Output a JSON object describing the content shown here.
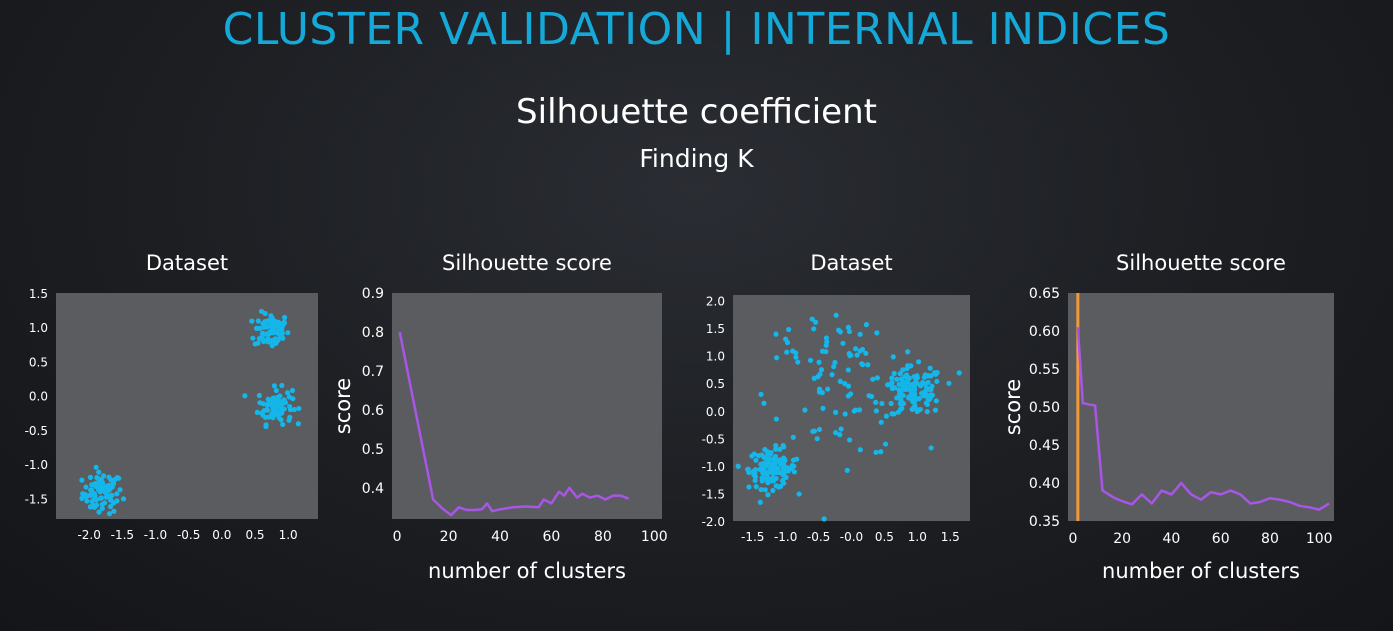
{
  "slide": {
    "title": "CLUSTER VALIDATION | INTERNAL INDICES",
    "subtitle": "Silhouette coefficient",
    "subsubtitle": "Finding K"
  },
  "colors": {
    "title": "#14a9d8",
    "plot_background": "#5b5c5f",
    "points": "#15b6ea",
    "line": "#a855e8",
    "marker": "#f29a3a"
  },
  "chart_data": [
    {
      "type": "scatter",
      "title": "Dataset",
      "xlabel": "",
      "ylabel": "",
      "xlim": [
        -2.5,
        1.45
      ],
      "ylim": [
        -1.8,
        1.5
      ],
      "xticks": [
        -2.0,
        -1.5,
        -1.0,
        -0.5,
        0.0,
        0.5,
        1.0
      ],
      "xtick_labels": [
        "-2.0",
        "-1.5",
        "-1.0",
        "-0.5",
        "0.0",
        "0.5",
        "1.0"
      ],
      "yticks": [
        1.5,
        1.0,
        0.5,
        0.0,
        -0.5,
        -1.0,
        -1.5
      ],
      "ytick_labels": [
        "1.5",
        "1.0",
        "0.5",
        "0.0",
        "-0.5",
        "-1.0",
        "-1.5"
      ],
      "grid": false,
      "clusters": [
        {
          "center": [
            -1.8,
            -1.42
          ],
          "spread": 0.15,
          "count": 80
        },
        {
          "center": [
            0.75,
            0.95
          ],
          "spread": 0.13,
          "count": 80
        },
        {
          "center": [
            0.8,
            -0.15
          ],
          "spread": 0.13,
          "count": 80
        }
      ]
    },
    {
      "type": "line",
      "title": "Silhouette score",
      "xlabel": "number of clusters",
      "ylabel": "score",
      "xlim": [
        -2,
        103
      ],
      "ylim": [
        0.32,
        0.9
      ],
      "xticks": [
        0,
        20,
        40,
        60,
        80,
        100
      ],
      "xtick_labels": [
        "0",
        "20",
        "40",
        "60",
        "80",
        "100"
      ],
      "yticks": [
        0.9,
        0.8,
        0.7,
        0.6,
        0.5,
        0.4
      ],
      "ytick_labels": [
        "0.9",
        "0.8",
        "0.7",
        "0.6",
        "0.5",
        "0.4"
      ],
      "grid": false,
      "series": [
        {
          "x": [
            1,
            14,
            18,
            21,
            24,
            27,
            30,
            33,
            35,
            37,
            40,
            45,
            50,
            55,
            57,
            60,
            63,
            65,
            67,
            70,
            72,
            75,
            78,
            81,
            84,
            87,
            90
          ],
          "y": [
            0.8,
            0.37,
            0.345,
            0.33,
            0.35,
            0.343,
            0.343,
            0.345,
            0.36,
            0.34,
            0.345,
            0.35,
            0.352,
            0.35,
            0.37,
            0.36,
            0.39,
            0.38,
            0.4,
            0.375,
            0.385,
            0.375,
            0.38,
            0.37,
            0.38,
            0.38,
            0.372
          ]
        }
      ]
    },
    {
      "type": "scatter",
      "title": "Dataset",
      "xlabel": "",
      "ylabel": "",
      "xlim": [
        -1.8,
        1.8
      ],
      "ylim": [
        -2.0,
        2.1
      ],
      "xticks": [
        -1.5,
        -1.0,
        -0.5,
        0.0,
        0.5,
        1.0,
        1.5
      ],
      "xtick_labels": [
        "-1.5",
        "-1.0",
        "-0.5",
        "-0.0",
        "0.5",
        "1.0",
        "1.5"
      ],
      "yticks": [
        2.0,
        1.5,
        1.0,
        0.5,
        0.0,
        -0.5,
        -1.0,
        -1.5,
        -2.0
      ],
      "ytick_labels": [
        "2.0",
        "1.5",
        "1.0",
        "0.5",
        "0.0",
        "-0.5",
        "-1.0",
        "-1.5",
        "-2.0"
      ],
      "grid": false,
      "clusters": [
        {
          "center": [
            -1.2,
            -1.05
          ],
          "spread": 0.18,
          "count": 120
        },
        {
          "center": [
            0.95,
            0.35
          ],
          "spread": 0.22,
          "count": 120
        },
        {
          "center": [
            -0.1,
            0.25
          ],
          "spread": 0.55,
          "count": 70
        },
        {
          "center": [
            -0.2,
            1.3
          ],
          "spread": 0.25,
          "count": 18
        },
        {
          "center": [
            -0.95,
            1.2
          ],
          "spread": 0.2,
          "count": 10
        }
      ]
    },
    {
      "type": "line",
      "title": "Silhouette score",
      "xlabel": "number of clusters",
      "ylabel": "score",
      "xlim": [
        -2,
        106
      ],
      "ylim": [
        0.35,
        0.65
      ],
      "xticks": [
        0,
        20,
        40,
        60,
        80,
        100
      ],
      "xtick_labels": [
        "0",
        "20",
        "40",
        "60",
        "80",
        "100"
      ],
      "yticks": [
        0.65,
        0.6,
        0.55,
        0.5,
        0.45,
        0.4,
        0.35
      ],
      "ytick_labels": [
        "0.65",
        "0.60",
        "0.55",
        "0.50",
        "0.45",
        "0.40",
        "0.35"
      ],
      "grid": false,
      "vline_x": 2,
      "series": [
        {
          "x": [
            2,
            4,
            7,
            9,
            12,
            17,
            21,
            24,
            28,
            32,
            36,
            40,
            44,
            48,
            52,
            56,
            60,
            64,
            68,
            72,
            76,
            80,
            84,
            88,
            92,
            96,
            100,
            104
          ],
          "y": [
            0.605,
            0.505,
            0.503,
            0.502,
            0.39,
            0.38,
            0.375,
            0.372,
            0.385,
            0.373,
            0.39,
            0.385,
            0.4,
            0.385,
            0.378,
            0.388,
            0.385,
            0.39,
            0.385,
            0.373,
            0.375,
            0.38,
            0.378,
            0.375,
            0.37,
            0.368,
            0.365,
            0.373
          ]
        }
      ]
    }
  ]
}
